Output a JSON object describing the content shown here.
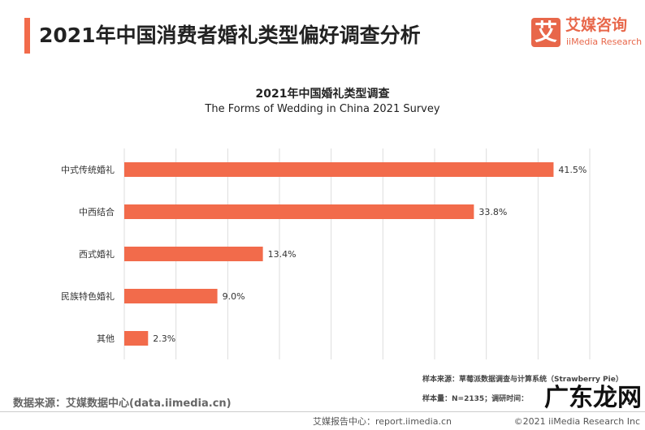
{
  "header": {
    "title": "2021年中国消费者婚礼类型偏好调查分析",
    "logo_mark": "艾",
    "logo_cn": "艾媒咨询",
    "logo_en": "iiMedia Research"
  },
  "chart_data": {
    "type": "bar",
    "orientation": "horizontal",
    "title": "2021年中国婚礼类型调查",
    "subtitle": "The Forms of Wedding  in China 2021 Survey",
    "categories": [
      "中式传统婚礼",
      "中西结合",
      "西式婚礼",
      "民族特色婚礼",
      "其他"
    ],
    "values": [
      41.5,
      33.8,
      13.4,
      9.0,
      2.3
    ],
    "labels": [
      "41.5%",
      "33.8%",
      "13.4%",
      "9.0%",
      "2.3%"
    ],
    "xlim": [
      0,
      45
    ],
    "grid": true,
    "bar_color": "#f26b4b"
  },
  "source": "数据来源：艾媒数据中心(data.iimedia.cn)",
  "notes": [
    "样本来源：草莓派数据调查与计算系统（Strawberry Pie）",
    "样本量：N=2135；调研时间："
  ],
  "footer": {
    "left": "艾媒报告中心：report.iimedia.cn",
    "copyright": "©2021  iiMedia Research  Inc"
  },
  "watermark": "广东龙网"
}
